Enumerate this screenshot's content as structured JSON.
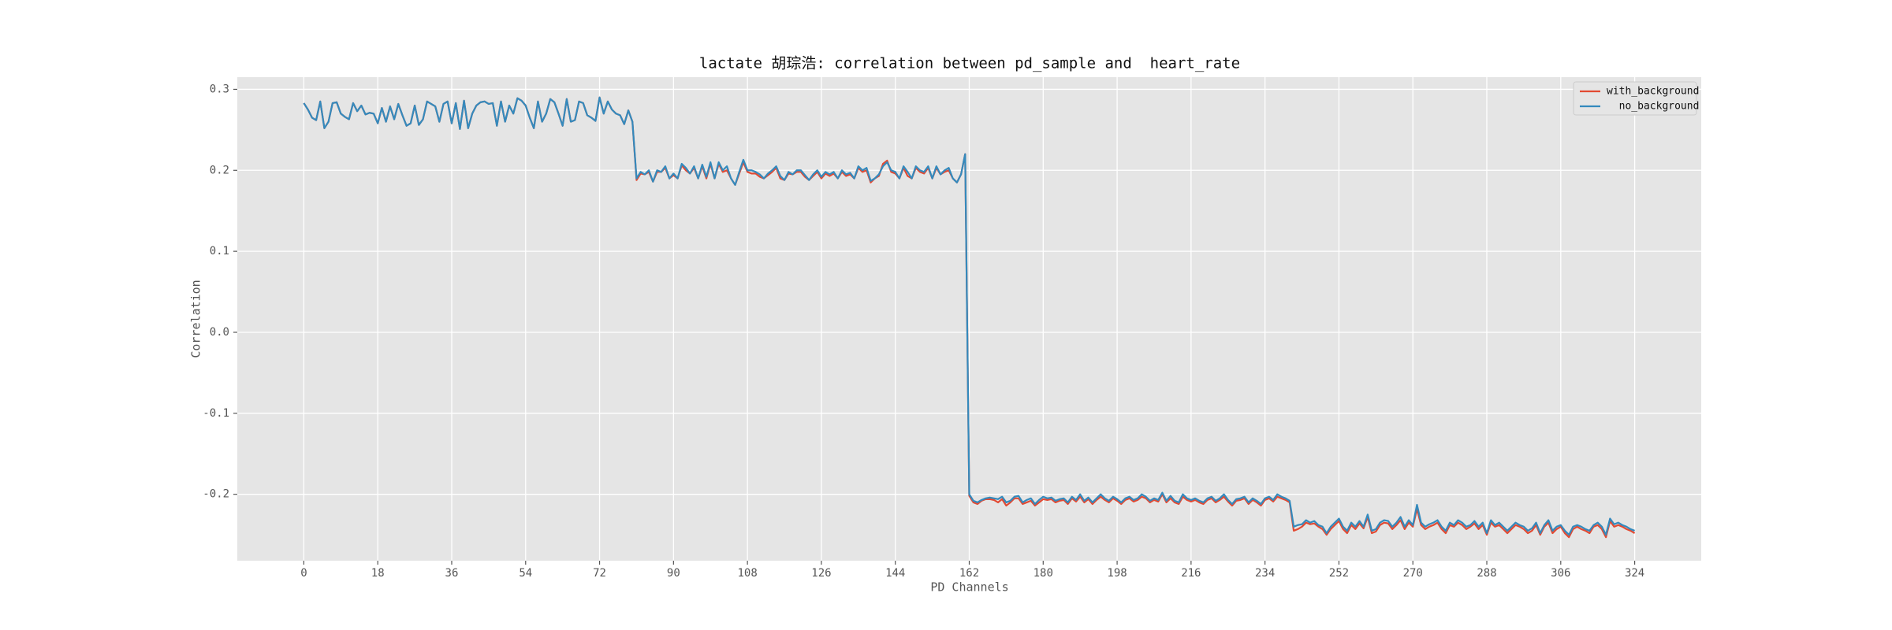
{
  "chart_data": {
    "type": "line",
    "title": "lactate 胡琮浩: correlation between pd_sample and  heart_rate",
    "x_label": "PD Channels",
    "y_label": "Correlation",
    "x": [
      0,
      1,
      2,
      3,
      4,
      5,
      6,
      7,
      8,
      9,
      10,
      11,
      12,
      13,
      14,
      15,
      16,
      17,
      18,
      19,
      20,
      21,
      22,
      23,
      24,
      25,
      26,
      27,
      28,
      29,
      30,
      31,
      32,
      33,
      34,
      35,
      36,
      37,
      38,
      39,
      40,
      41,
      42,
      43,
      44,
      45,
      46,
      47,
      48,
      49,
      50,
      51,
      52,
      53,
      54,
      55,
      56,
      57,
      58,
      59,
      60,
      61,
      62,
      63,
      64,
      65,
      66,
      67,
      68,
      69,
      70,
      71,
      72,
      73,
      74,
      75,
      76,
      77,
      78,
      79,
      80,
      81,
      82,
      83,
      84,
      85,
      86,
      87,
      88,
      89,
      90,
      91,
      92,
      93,
      94,
      95,
      96,
      97,
      98,
      99,
      100,
      101,
      102,
      103,
      104,
      105,
      106,
      107,
      108,
      109,
      110,
      111,
      112,
      113,
      114,
      115,
      116,
      117,
      118,
      119,
      120,
      121,
      122,
      123,
      124,
      125,
      126,
      127,
      128,
      129,
      130,
      131,
      132,
      133,
      134,
      135,
      136,
      137,
      138,
      139,
      140,
      141,
      142,
      143,
      144,
      145,
      146,
      147,
      148,
      149,
      150,
      151,
      152,
      153,
      154,
      155,
      156,
      157,
      158,
      159,
      160,
      161,
      162,
      163,
      164,
      165,
      166,
      167,
      168,
      169,
      170,
      171,
      172,
      173,
      174,
      175,
      176,
      177,
      178,
      179,
      180,
      181,
      182,
      183,
      184,
      185,
      186,
      187,
      188,
      189,
      190,
      191,
      192,
      193,
      194,
      195,
      196,
      197,
      198,
      199,
      200,
      201,
      202,
      203,
      204,
      205,
      206,
      207,
      208,
      209,
      210,
      211,
      212,
      213,
      214,
      215,
      216,
      217,
      218,
      219,
      220,
      221,
      222,
      223,
      224,
      225,
      226,
      227,
      228,
      229,
      230,
      231,
      232,
      233,
      234,
      235,
      236,
      237,
      238,
      239,
      240,
      241,
      242,
      243,
      244,
      245,
      246,
      247,
      248,
      249,
      250,
      251,
      252,
      253,
      254,
      255,
      256,
      257,
      258,
      259,
      260,
      261,
      262,
      263,
      264,
      265,
      266,
      267,
      268,
      269,
      270,
      271,
      272,
      273,
      274,
      275,
      276,
      277,
      278,
      279,
      280,
      281,
      282,
      283,
      284,
      285,
      286,
      287,
      288,
      289,
      290,
      291,
      292,
      293,
      294,
      295,
      296,
      297,
      298,
      299,
      300,
      301,
      302,
      303,
      304,
      305,
      306,
      307,
      308,
      309,
      310,
      311,
      312,
      313,
      314,
      315,
      316,
      317,
      318,
      319,
      320,
      321,
      322,
      323,
      324
    ],
    "series": [
      {
        "name": "with_background",
        "color": "#e24a33",
        "values": [
          0.283,
          0.275,
          0.265,
          0.262,
          0.285,
          0.252,
          0.26,
          0.283,
          0.284,
          0.27,
          0.266,
          0.263,
          0.283,
          0.273,
          0.28,
          0.269,
          0.271,
          0.27,
          0.258,
          0.277,
          0.26,
          0.279,
          0.263,
          0.282,
          0.268,
          0.255,
          0.258,
          0.28,
          0.256,
          0.263,
          0.285,
          0.282,
          0.279,
          0.26,
          0.282,
          0.285,
          0.258,
          0.283,
          0.251,
          0.286,
          0.252,
          0.27,
          0.28,
          0.284,
          0.285,
          0.282,
          0.283,
          0.255,
          0.285,
          0.26,
          0.28,
          0.27,
          0.289,
          0.286,
          0.28,
          0.265,
          0.252,
          0.285,
          0.26,
          0.27,
          0.288,
          0.284,
          0.27,
          0.255,
          0.288,
          0.26,
          0.262,
          0.285,
          0.283,
          0.268,
          0.265,
          0.261,
          0.29,
          0.27,
          0.285,
          0.275,
          0.27,
          0.268,
          0.257,
          0.274,
          0.26,
          0.188,
          0.196,
          0.195,
          0.198,
          0.186,
          0.198,
          0.198,
          0.203,
          0.19,
          0.194,
          0.19,
          0.206,
          0.2,
          0.196,
          0.203,
          0.19,
          0.205,
          0.19,
          0.208,
          0.19,
          0.208,
          0.198,
          0.2,
          0.19,
          0.182,
          0.196,
          0.21,
          0.198,
          0.196,
          0.196,
          0.192,
          0.19,
          0.194,
          0.198,
          0.203,
          0.19,
          0.188,
          0.196,
          0.195,
          0.198,
          0.198,
          0.192,
          0.188,
          0.193,
          0.198,
          0.19,
          0.196,
          0.193,
          0.196,
          0.19,
          0.198,
          0.193,
          0.195,
          0.19,
          0.203,
          0.198,
          0.2,
          0.185,
          0.19,
          0.193,
          0.208,
          0.212,
          0.198,
          0.196,
          0.19,
          0.203,
          0.193,
          0.19,
          0.203,
          0.198,
          0.196,
          0.203,
          0.19,
          0.203,
          0.195,
          0.198,
          0.2,
          0.19,
          0.185,
          0.195,
          0.22,
          -0.202,
          -0.21,
          -0.212,
          -0.208,
          -0.206,
          -0.206,
          -0.207,
          -0.21,
          -0.206,
          -0.214,
          -0.21,
          -0.205,
          -0.205,
          -0.212,
          -0.21,
          -0.208,
          -0.214,
          -0.21,
          -0.206,
          -0.207,
          -0.206,
          -0.21,
          -0.208,
          -0.207,
          -0.212,
          -0.205,
          -0.209,
          -0.203,
          -0.21,
          -0.206,
          -0.212,
          -0.207,
          -0.203,
          -0.207,
          -0.21,
          -0.205,
          -0.208,
          -0.212,
          -0.207,
          -0.205,
          -0.209,
          -0.207,
          -0.203,
          -0.205,
          -0.21,
          -0.207,
          -0.209,
          -0.2,
          -0.21,
          -0.205,
          -0.21,
          -0.212,
          -0.203,
          -0.207,
          -0.209,
          -0.207,
          -0.21,
          -0.212,
          -0.207,
          -0.205,
          -0.21,
          -0.207,
          -0.203,
          -0.209,
          -0.214,
          -0.208,
          -0.207,
          -0.205,
          -0.212,
          -0.207,
          -0.21,
          -0.214,
          -0.207,
          -0.205,
          -0.209,
          -0.203,
          -0.205,
          -0.207,
          -0.21,
          -0.245,
          -0.243,
          -0.24,
          -0.235,
          -0.237,
          -0.236,
          -0.24,
          -0.243,
          -0.25,
          -0.243,
          -0.238,
          -0.233,
          -0.243,
          -0.248,
          -0.238,
          -0.243,
          -0.236,
          -0.242,
          -0.228,
          -0.248,
          -0.246,
          -0.238,
          -0.235,
          -0.236,
          -0.243,
          -0.238,
          -0.232,
          -0.243,
          -0.235,
          -0.24,
          -0.218,
          -0.238,
          -0.243,
          -0.24,
          -0.238,
          -0.235,
          -0.243,
          -0.248,
          -0.238,
          -0.24,
          -0.235,
          -0.238,
          -0.243,
          -0.24,
          -0.236,
          -0.243,
          -0.238,
          -0.25,
          -0.235,
          -0.24,
          -0.238,
          -0.243,
          -0.248,
          -0.243,
          -0.238,
          -0.24,
          -0.243,
          -0.248,
          -0.245,
          -0.238,
          -0.25,
          -0.24,
          -0.235,
          -0.248,
          -0.243,
          -0.24,
          -0.248,
          -0.253,
          -0.243,
          -0.24,
          -0.243,
          -0.245,
          -0.248,
          -0.24,
          -0.238,
          -0.243,
          -0.253,
          -0.233,
          -0.24,
          -0.238,
          -0.24,
          -0.243,
          -0.245,
          -0.248
        ]
      },
      {
        "name": "  no_background",
        "color": "#348abd",
        "values": [
          0.283,
          0.275,
          0.265,
          0.262,
          0.285,
          0.252,
          0.26,
          0.283,
          0.284,
          0.27,
          0.266,
          0.263,
          0.283,
          0.273,
          0.28,
          0.269,
          0.271,
          0.27,
          0.258,
          0.277,
          0.26,
          0.279,
          0.263,
          0.282,
          0.268,
          0.255,
          0.258,
          0.28,
          0.256,
          0.263,
          0.285,
          0.282,
          0.279,
          0.26,
          0.282,
          0.285,
          0.258,
          0.283,
          0.251,
          0.286,
          0.252,
          0.27,
          0.28,
          0.284,
          0.285,
          0.282,
          0.283,
          0.255,
          0.285,
          0.26,
          0.28,
          0.27,
          0.289,
          0.286,
          0.28,
          0.265,
          0.252,
          0.285,
          0.26,
          0.27,
          0.288,
          0.284,
          0.27,
          0.255,
          0.288,
          0.26,
          0.262,
          0.285,
          0.283,
          0.268,
          0.265,
          0.261,
          0.29,
          0.27,
          0.285,
          0.275,
          0.27,
          0.268,
          0.257,
          0.274,
          0.26,
          0.19,
          0.198,
          0.195,
          0.2,
          0.186,
          0.2,
          0.198,
          0.205,
          0.19,
          0.196,
          0.19,
          0.208,
          0.203,
          0.196,
          0.205,
          0.19,
          0.207,
          0.192,
          0.21,
          0.19,
          0.21,
          0.2,
          0.205,
          0.19,
          0.182,
          0.198,
          0.213,
          0.2,
          0.2,
          0.198,
          0.195,
          0.19,
          0.196,
          0.2,
          0.205,
          0.193,
          0.188,
          0.198,
          0.195,
          0.2,
          0.2,
          0.194,
          0.188,
          0.195,
          0.2,
          0.192,
          0.198,
          0.195,
          0.198,
          0.19,
          0.2,
          0.195,
          0.197,
          0.19,
          0.205,
          0.2,
          0.203,
          0.187,
          0.19,
          0.195,
          0.205,
          0.21,
          0.2,
          0.198,
          0.19,
          0.205,
          0.198,
          0.19,
          0.205,
          0.2,
          0.198,
          0.205,
          0.19,
          0.205,
          0.195,
          0.2,
          0.203,
          0.19,
          0.185,
          0.195,
          0.22,
          -0.2,
          -0.208,
          -0.21,
          -0.207,
          -0.205,
          -0.204,
          -0.205,
          -0.206,
          -0.203,
          -0.21,
          -0.208,
          -0.203,
          -0.202,
          -0.21,
          -0.207,
          -0.205,
          -0.212,
          -0.207,
          -0.203,
          -0.205,
          -0.204,
          -0.208,
          -0.206,
          -0.205,
          -0.21,
          -0.203,
          -0.207,
          -0.2,
          -0.208,
          -0.204,
          -0.21,
          -0.205,
          -0.2,
          -0.205,
          -0.208,
          -0.203,
          -0.206,
          -0.21,
          -0.205,
          -0.203,
          -0.207,
          -0.205,
          -0.2,
          -0.203,
          -0.208,
          -0.205,
          -0.207,
          -0.198,
          -0.208,
          -0.202,
          -0.208,
          -0.21,
          -0.2,
          -0.205,
          -0.207,
          -0.205,
          -0.208,
          -0.21,
          -0.205,
          -0.203,
          -0.208,
          -0.205,
          -0.2,
          -0.207,
          -0.212,
          -0.206,
          -0.205,
          -0.203,
          -0.21,
          -0.205,
          -0.208,
          -0.212,
          -0.205,
          -0.203,
          -0.207,
          -0.2,
          -0.203,
          -0.205,
          -0.208,
          -0.24,
          -0.238,
          -0.237,
          -0.232,
          -0.235,
          -0.233,
          -0.238,
          -0.24,
          -0.248,
          -0.24,
          -0.235,
          -0.23,
          -0.24,
          -0.245,
          -0.235,
          -0.24,
          -0.233,
          -0.24,
          -0.225,
          -0.245,
          -0.243,
          -0.235,
          -0.232,
          -0.233,
          -0.24,
          -0.235,
          -0.228,
          -0.24,
          -0.232,
          -0.238,
          -0.213,
          -0.235,
          -0.24,
          -0.237,
          -0.235,
          -0.232,
          -0.24,
          -0.245,
          -0.235,
          -0.238,
          -0.232,
          -0.235,
          -0.24,
          -0.238,
          -0.233,
          -0.24,
          -0.235,
          -0.248,
          -0.232,
          -0.238,
          -0.235,
          -0.24,
          -0.245,
          -0.24,
          -0.235,
          -0.238,
          -0.24,
          -0.245,
          -0.242,
          -0.235,
          -0.248,
          -0.238,
          -0.232,
          -0.245,
          -0.24,
          -0.238,
          -0.245,
          -0.25,
          -0.24,
          -0.238,
          -0.24,
          -0.243,
          -0.245,
          -0.238,
          -0.235,
          -0.24,
          -0.25,
          -0.23,
          -0.237,
          -0.235,
          -0.238,
          -0.24,
          -0.243,
          -0.245
        ]
      }
    ],
    "xlim": [
      -16.2,
      340.2
    ],
    "ylim": [
      -0.282,
      0.315
    ],
    "xticks": [
      0,
      18,
      36,
      54,
      72,
      90,
      108,
      126,
      144,
      162,
      180,
      198,
      216,
      234,
      252,
      270,
      288,
      306,
      324
    ],
    "yticks": [
      -0.2,
      -0.1,
      {
        "value": 0,
        "label": "0.0"
      },
      0.1,
      0.2,
      0.3
    ],
    "grid": true,
    "legend": "upper right"
  }
}
